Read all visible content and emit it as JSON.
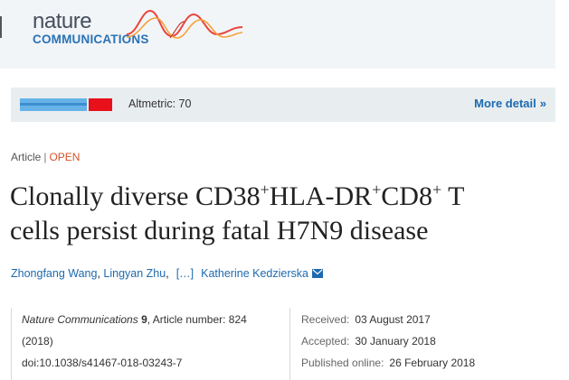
{
  "header": {
    "logo_word_1": "nature",
    "logo_word_2": "COMMUNICATIONS",
    "brand_color": "#2a72b5",
    "wave_colors": [
      "#e8453c",
      "#f4a23a"
    ]
  },
  "altmetric": {
    "label": "Altmetric: 70",
    "more_detail": "More detail",
    "more_detail_icon": "double-chevron-right-icon",
    "swatch_colors": [
      "#66b3e8",
      "#e8101b"
    ]
  },
  "article": {
    "type": "Article",
    "separator": "|",
    "access": "OPEN",
    "title": {
      "part1": "Clonally diverse CD38",
      "sup1": "+",
      "part2": "HLA-DR",
      "sup2": "+",
      "part3": "CD8",
      "sup3": "+",
      "part4": " T",
      "line2": "cells persist during fatal H7N9 disease"
    },
    "authors": [
      "Zhongfang Wang",
      "Lingyan Zhu",
      "Katherine Kedzierska"
    ],
    "authors_ellipsis": "[…]",
    "mail_icon": "envelope-icon"
  },
  "citation": {
    "journal": "Nature Communications",
    "volume": "9",
    "article_number_text": ", Article number: 824",
    "year": "(2018)",
    "doi": "doi:10.1038/s41467-018-03243-7"
  },
  "dates": {
    "received_label": "Received:",
    "received": "03 August 2017",
    "accepted_label": "Accepted:",
    "accepted": "30 January 2018",
    "published_label": "Published online:",
    "published": "26 February 2018"
  }
}
